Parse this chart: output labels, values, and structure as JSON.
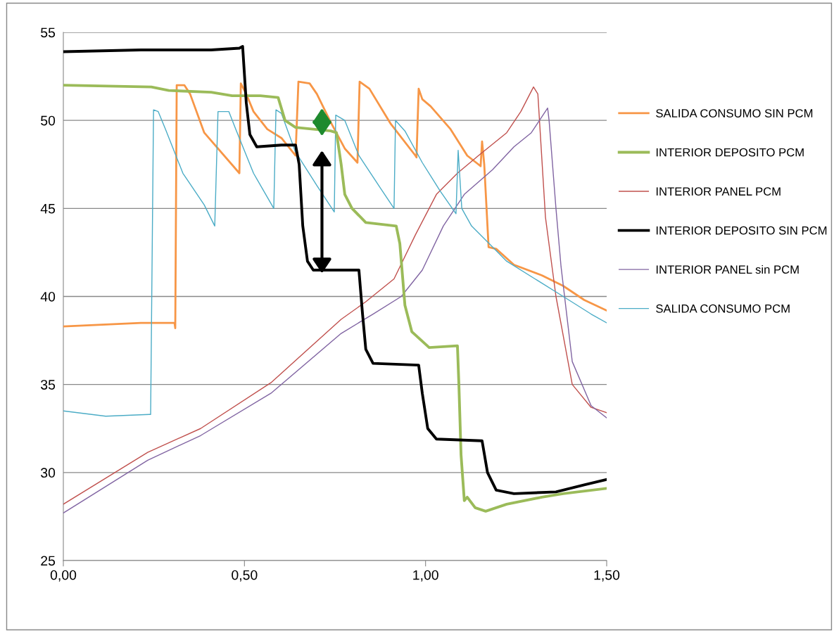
{
  "chart_data": {
    "type": "line",
    "xlim": [
      0,
      1.5
    ],
    "xticks": [
      {
        "value": 0,
        "label": "0,00"
      },
      {
        "value": 0.5,
        "label": "0,50"
      },
      {
        "value": 1.0,
        "label": "1,00"
      },
      {
        "value": 1.5,
        "label": "1,50"
      }
    ],
    "ylim": [
      25,
      55
    ],
    "yticks": [
      25,
      30,
      35,
      40,
      45,
      50,
      55
    ],
    "grid": "y",
    "legend": "right",
    "marker": "none",
    "line_style": "solid",
    "series": [
      {
        "name": "SALIDA CONSUMO SIN PCM",
        "color": "#f79646",
        "x": [
          0,
          0.214,
          0.307,
          0.309,
          0.313,
          0.334,
          0.35,
          0.389,
          0.486,
          0.49,
          0.505,
          0.525,
          0.563,
          0.602,
          0.641,
          0.649,
          0.68,
          0.7,
          0.738,
          0.777,
          0.812,
          0.818,
          0.845,
          0.904,
          0.972,
          0.975,
          0.981,
          0.991,
          1.014,
          1.069,
          1.115,
          1.146,
          1.152,
          1.156,
          1.162,
          1.174,
          1.195,
          1.244,
          1.321,
          1.38,
          1.438,
          1.5
        ],
        "values": [
          38.3,
          38.5,
          38.5,
          38.2,
          52.0,
          52.0,
          51.5,
          49.3,
          47.0,
          52.1,
          51.5,
          50.5,
          49.5,
          49.0,
          48.0,
          52.2,
          52.1,
          51.5,
          49.9,
          48.4,
          47.6,
          52.2,
          51.8,
          49.8,
          48.0,
          47.9,
          51.8,
          51.2,
          50.8,
          49.5,
          48.0,
          47.5,
          47.4,
          48.8,
          47.5,
          42.8,
          42.7,
          41.8,
          41.2,
          40.6,
          39.8,
          39.2
        ]
      },
      {
        "name": "INTERIOR DEPOSITO PCM",
        "color": "#9bbb59",
        "x": [
          0,
          0.243,
          0.291,
          0.408,
          0.466,
          0.544,
          0.593,
          0.612,
          0.641,
          0.738,
          0.754,
          0.767,
          0.777,
          0.797,
          0.835,
          0.919,
          0.929,
          0.943,
          0.962,
          1.01,
          1.088,
          1.092,
          1.098,
          1.107,
          1.115,
          1.137,
          1.166,
          1.224,
          1.321,
          1.38,
          1.5
        ],
        "values": [
          52.0,
          51.9,
          51.7,
          51.6,
          51.4,
          51.4,
          51.3,
          50.0,
          49.6,
          49.4,
          49.3,
          47.5,
          45.8,
          45.0,
          44.2,
          44.0,
          43.0,
          39.5,
          38.0,
          37.1,
          37.2,
          35.0,
          31.0,
          28.4,
          28.6,
          28.0,
          27.8,
          28.2,
          28.6,
          28.8,
          29.1
        ]
      },
      {
        "name": "INTERIOR PANEL PCM",
        "color": "#c0504d",
        "x": [
          0,
          0.233,
          0.379,
          0.573,
          0.767,
          0.835,
          0.913,
          0.972,
          1.03,
          1.088,
          1.146,
          1.224,
          1.263,
          1.298,
          1.31,
          1.331,
          1.36,
          1.405,
          1.457,
          1.5
        ],
        "values": [
          28.2,
          31.15,
          32.5,
          35.1,
          38.7,
          39.7,
          41.0,
          43.5,
          45.8,
          47.0,
          48.0,
          49.3,
          50.5,
          51.9,
          51.5,
          44.5,
          40.0,
          35.0,
          33.7,
          33.4
        ]
      },
      {
        "name": "INTERIOR DEPOSITO SIN PCM",
        "color": "#000000",
        "x": [
          0,
          0.214,
          0.408,
          0.486,
          0.495,
          0.505,
          0.515,
          0.534,
          0.602,
          0.641,
          0.651,
          0.661,
          0.674,
          0.69,
          0.816,
          0.826,
          0.835,
          0.855,
          0.981,
          0.991,
          1.006,
          1.03,
          1.156,
          1.171,
          1.195,
          1.244,
          1.36,
          1.438,
          1.5
        ],
        "values": [
          53.9,
          54.0,
          54.0,
          54.1,
          54.2,
          51.0,
          49.2,
          48.5,
          48.6,
          48.6,
          47.5,
          44.0,
          42.0,
          41.5,
          41.5,
          39.0,
          37.0,
          36.2,
          36.1,
          34.5,
          32.5,
          31.9,
          31.8,
          30.0,
          29.0,
          28.8,
          28.9,
          29.3,
          29.6
        ]
      },
      {
        "name": "INTERIOR PANEL sin PCM",
        "color": "#8064a2",
        "x": [
          0,
          0.233,
          0.379,
          0.573,
          0.767,
          0.855,
          0.933,
          0.991,
          1.049,
          1.107,
          1.185,
          1.244,
          1.292,
          1.337,
          1.341,
          1.36,
          1.374,
          1.405,
          1.457,
          1.5
        ],
        "values": [
          27.7,
          30.7,
          32.1,
          34.5,
          37.9,
          39.0,
          40.0,
          41.5,
          44.0,
          45.8,
          47.2,
          48.5,
          49.3,
          50.7,
          50.0,
          45.0,
          41.7,
          36.3,
          33.8,
          33.1
        ]
      },
      {
        "name": "SALIDA CONSUMO PCM",
        "color": "#4bacc6",
        "x": [
          0,
          0.117,
          0.237,
          0.241,
          0.249,
          0.262,
          0.282,
          0.33,
          0.389,
          0.418,
          0.427,
          0.457,
          0.476,
          0.525,
          0.581,
          0.587,
          0.602,
          0.641,
          0.7,
          0.748,
          0.752,
          0.777,
          0.816,
          0.874,
          0.913,
          0.917,
          0.943,
          0.991,
          1.04,
          1.084,
          1.09,
          1.1,
          1.127,
          1.176,
          1.224,
          1.302,
          1.38,
          1.457,
          1.5
        ],
        "values": [
          33.5,
          33.2,
          33.3,
          33.3,
          50.6,
          50.5,
          49.5,
          47.0,
          45.2,
          44.0,
          50.5,
          50.5,
          49.5,
          47.0,
          45.0,
          50.6,
          50.4,
          48.2,
          46.3,
          44.8,
          50.3,
          50.0,
          48.0,
          46.2,
          45.0,
          50.0,
          49.4,
          47.6,
          46.0,
          44.7,
          48.3,
          45.0,
          44.0,
          43.0,
          42.0,
          41.0,
          40.0,
          39.0,
          38.5
        ]
      }
    ]
  }
}
